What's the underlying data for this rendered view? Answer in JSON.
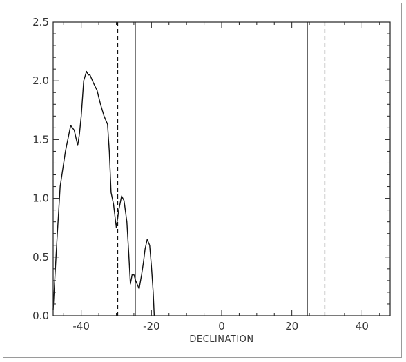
{
  "chart_data": {
    "type": "line",
    "title": "",
    "xlabel": "DECLINATION",
    "ylabel": "",
    "xlim": [
      -48,
      48
    ],
    "ylim": [
      0,
      2.5
    ],
    "x_ticks": [
      -40,
      -20,
      0,
      20,
      40
    ],
    "x_tick_labels": [
      "-40",
      "-20",
      "0",
      "20",
      "40"
    ],
    "y_ticks": [
      0.0,
      0.5,
      1.0,
      1.5,
      2.0,
      2.5
    ],
    "y_tick_labels": [
      "0.0",
      "0.5",
      "1.0",
      "1.5",
      "2.0",
      "2.5"
    ],
    "grid": false,
    "series": [
      {
        "style": "solid",
        "color": "#111111",
        "x": [
          -48,
          -47,
          -46,
          -44.5,
          -43,
          -42,
          -41,
          -40.5,
          -40,
          -39.3,
          -38.5,
          -38,
          -37.5,
          -36.5,
          -35.5,
          -34.5,
          -33.5,
          -32.5,
          -32,
          -31.5,
          -30.8,
          -30,
          -29.3,
          -28.5,
          -27.8,
          -27,
          -26.5,
          -26,
          -25.5,
          -25,
          -24.5,
          -23.5,
          -22.8,
          -22.3,
          -21.8,
          -21.2,
          -20.5,
          -20,
          -19.5,
          -19.2
        ],
        "y": [
          0.05,
          0.6,
          1.1,
          1.4,
          1.62,
          1.58,
          1.45,
          1.55,
          1.7,
          2.0,
          2.08,
          2.05,
          2.05,
          1.98,
          1.92,
          1.8,
          1.7,
          1.63,
          1.4,
          1.05,
          0.95,
          0.75,
          0.9,
          1.02,
          0.98,
          0.8,
          0.55,
          0.27,
          0.35,
          0.35,
          0.3,
          0.23,
          0.35,
          0.45,
          0.57,
          0.65,
          0.6,
          0.42,
          0.2,
          0.0
        ]
      }
    ],
    "vertical_lines": [
      {
        "x": -29.6,
        "style": "dashed"
      },
      {
        "x": -24.6,
        "style": "solid"
      },
      {
        "x": 24.4,
        "style": "solid"
      },
      {
        "x": 29.4,
        "style": "dashed"
      }
    ]
  }
}
